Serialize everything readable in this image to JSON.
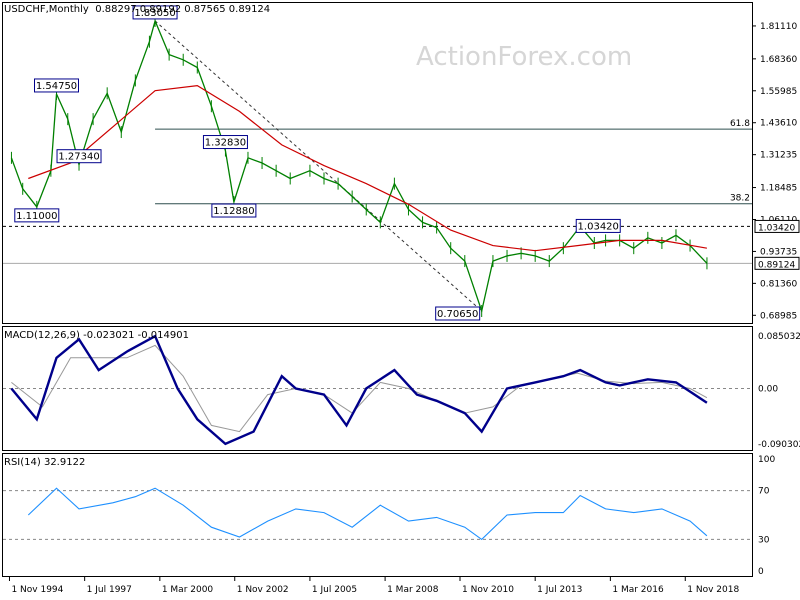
{
  "header": {
    "symbol": "USDCHF,Monthly",
    "ohlc": "0.88297 0.89192 0.87565 0.89124"
  },
  "watermark": "ActionForex.com",
  "price_panel": {
    "y_ticks": [
      "1.81110",
      "1.68360",
      "1.55985",
      "1.43610",
      "1.31235",
      "1.18485",
      "1.06110",
      "0.93735",
      "0.81360",
      "0.68985"
    ],
    "tick_values": [
      1.8111,
      1.6836,
      1.55985,
      1.4361,
      1.31235,
      1.18485,
      1.0611,
      0.93735,
      0.8136,
      0.68985
    ],
    "last_price_label": "0.89124",
    "last_price": 0.89124,
    "resistance_label": "1.03420",
    "resistance": 1.0342,
    "fib_levels": [
      {
        "label": "61.8",
        "value": 1.4111
      },
      {
        "label": "38.2",
        "value": 1.1221
      }
    ]
  },
  "annotations": [
    {
      "label": "1.83050",
      "date": 2000.0,
      "value": 1.8305
    },
    {
      "label": "1.54750",
      "date": 1996.5,
      "value": 1.5475
    },
    {
      "label": "1.27340",
      "date": 1997.3,
      "value": 1.2734
    },
    {
      "label": "1.11000",
      "date": 1995.8,
      "value": 1.11
    },
    {
      "label": "1.32830",
      "date": 2002.5,
      "value": 1.3283
    },
    {
      "label": "1.12880",
      "date": 2002.8,
      "value": 1.1288
    },
    {
      "label": "0.70650",
      "date": 2011.6,
      "value": 0.7065
    },
    {
      "label": "1.03420",
      "date": 2015.1,
      "value": 1.0342
    }
  ],
  "macd_panel": {
    "title": "MACD(12,26,9) -0.023021 -0.014901",
    "y_ticks": [
      "0.085032",
      "0.00",
      "-0.090302"
    ]
  },
  "rsi_panel": {
    "title": "RSI(14) 32.9122",
    "y_ticks": [
      "100",
      "70",
      "30",
      "0"
    ]
  },
  "x_axis": {
    "labels": [
      "1 Nov 1994",
      "1 Jul 1997",
      "1 Mar 2000",
      "1 Nov 2002",
      "1 Jul 2005",
      "1 Mar 2008",
      "1 Nov 2010",
      "1 Jul 2013",
      "1 Mar 2016",
      "1 Nov 2018"
    ]
  },
  "colors": {
    "candles": "#008000",
    "ma": "#cc0000",
    "macd": "#00008b",
    "signal": "#999999",
    "rsi": "#1e90ff",
    "grid": "#888888"
  },
  "chart_data": {
    "type": "line",
    "title": "USDCHF,Monthly",
    "x_unit": "year",
    "price": {
      "x": [
        1994.9,
        1995.3,
        1995.8,
        1996.3,
        1996.5,
        1996.9,
        1997.3,
        1997.8,
        1998.3,
        1998.8,
        1999.3,
        1999.8,
        2000.0,
        2000.5,
        2001.0,
        2001.5,
        2002.0,
        2002.5,
        2002.8,
        2003.3,
        2003.8,
        2004.3,
        2004.8,
        2005.5,
        2006.0,
        2006.5,
        2007.0,
        2007.5,
        2008.0,
        2008.5,
        2009.0,
        2009.5,
        2010.0,
        2010.5,
        2011.0,
        2011.6,
        2012.0,
        2012.5,
        2013.0,
        2013.5,
        2014.0,
        2014.5,
        2015.1,
        2015.6,
        2016.0,
        2016.5,
        2017.0,
        2017.5,
        2018.0,
        2018.5,
        2019.0,
        2019.6
      ],
      "y": [
        1.3,
        1.18,
        1.11,
        1.25,
        1.5475,
        1.45,
        1.2734,
        1.45,
        1.55,
        1.4,
        1.6,
        1.75,
        1.8305,
        1.7,
        1.68,
        1.65,
        1.5,
        1.3283,
        1.1288,
        1.3,
        1.28,
        1.25,
        1.22,
        1.25,
        1.22,
        1.2,
        1.15,
        1.1,
        1.05,
        1.2,
        1.1,
        1.05,
        1.03,
        0.95,
        0.9,
        0.7065,
        0.9,
        0.92,
        0.93,
        0.92,
        0.9,
        0.95,
        1.0342,
        0.97,
        0.98,
        0.98,
        0.95,
        0.99,
        0.97,
        1.0,
        0.96,
        0.89124
      ]
    },
    "moving_average": {
      "x": [
        1995.5,
        1997.0,
        1998.5,
        2000.0,
        2001.5,
        2003.0,
        2004.5,
        2006.0,
        2007.5,
        2009.0,
        2010.5,
        2012.0,
        2013.5,
        2015.0,
        2016.5,
        2018.0,
        2019.6
      ],
      "y": [
        1.22,
        1.28,
        1.42,
        1.56,
        1.58,
        1.48,
        1.35,
        1.27,
        1.2,
        1.12,
        1.02,
        0.96,
        0.94,
        0.96,
        0.98,
        0.98,
        0.95
      ]
    },
    "macd": {
      "x": [
        1994.9,
        1995.8,
        1996.5,
        1997.3,
        1998.0,
        1999.0,
        2000.0,
        2000.8,
        2001.5,
        2002.5,
        2003.5,
        2004.5,
        2005.0,
        2006.0,
        2006.8,
        2007.5,
        2008.5,
        2009.3,
        2010.0,
        2011.0,
        2011.6,
        2012.5,
        2013.5,
        2014.5,
        2015.1,
        2016.0,
        2016.5,
        2017.5,
        2018.5,
        2019.0,
        2019.6
      ],
      "y": [
        0.0,
        -0.05,
        0.05,
        0.08,
        0.03,
        0.06,
        0.085,
        0.0,
        -0.05,
        -0.09,
        -0.07,
        0.02,
        0.0,
        -0.01,
        -0.06,
        0.0,
        0.03,
        -0.01,
        -0.02,
        -0.04,
        -0.07,
        0.0,
        0.01,
        0.02,
        0.03,
        0.01,
        0.005,
        0.015,
        0.01,
        -0.005,
        -0.023021
      ]
    },
    "signal": {
      "x": [
        1994.9,
        1996.0,
        1997.0,
        1998.0,
        1999.0,
        2000.0,
        2001.0,
        2002.0,
        2003.0,
        2004.0,
        2005.0,
        2006.0,
        2007.0,
        2008.0,
        2009.0,
        2010.0,
        2011.0,
        2012.0,
        2013.0,
        2014.0,
        2015.0,
        2016.0,
        2017.0,
        2018.0,
        2019.0,
        2019.6
      ],
      "y": [
        0.01,
        -0.03,
        0.05,
        0.05,
        0.05,
        0.07,
        0.02,
        -0.06,
        -0.07,
        -0.01,
        0.0,
        -0.01,
        -0.04,
        0.01,
        0.0,
        -0.02,
        -0.04,
        -0.03,
        0.005,
        0.015,
        0.025,
        0.012,
        0.008,
        0.01,
        0.0,
        -0.014901
      ]
    },
    "rsi": {
      "x": [
        1995.5,
        1996.5,
        1997.3,
        1998.5,
        1999.3,
        2000.0,
        2001.0,
        2002.0,
        2003.0,
        2004.0,
        2005.0,
        2006.0,
        2007.0,
        2008.0,
        2009.0,
        2010.0,
        2011.0,
        2011.6,
        2012.5,
        2013.5,
        2014.5,
        2015.1,
        2016.0,
        2017.0,
        2018.0,
        2019.0,
        2019.6
      ],
      "y": [
        50,
        72,
        55,
        60,
        65,
        72,
        58,
        40,
        32,
        45,
        55,
        52,
        40,
        58,
        45,
        48,
        40,
        30,
        50,
        52,
        52,
        66,
        55,
        52,
        55,
        45,
        32.9122
      ]
    },
    "price_ylim": [
      0.66,
      1.9
    ],
    "macd_ylim": [
      -0.1,
      0.1
    ],
    "rsi_ylim": [
      0,
      100
    ],
    "xlim": [
      1994.6,
      2021.2
    ]
  }
}
